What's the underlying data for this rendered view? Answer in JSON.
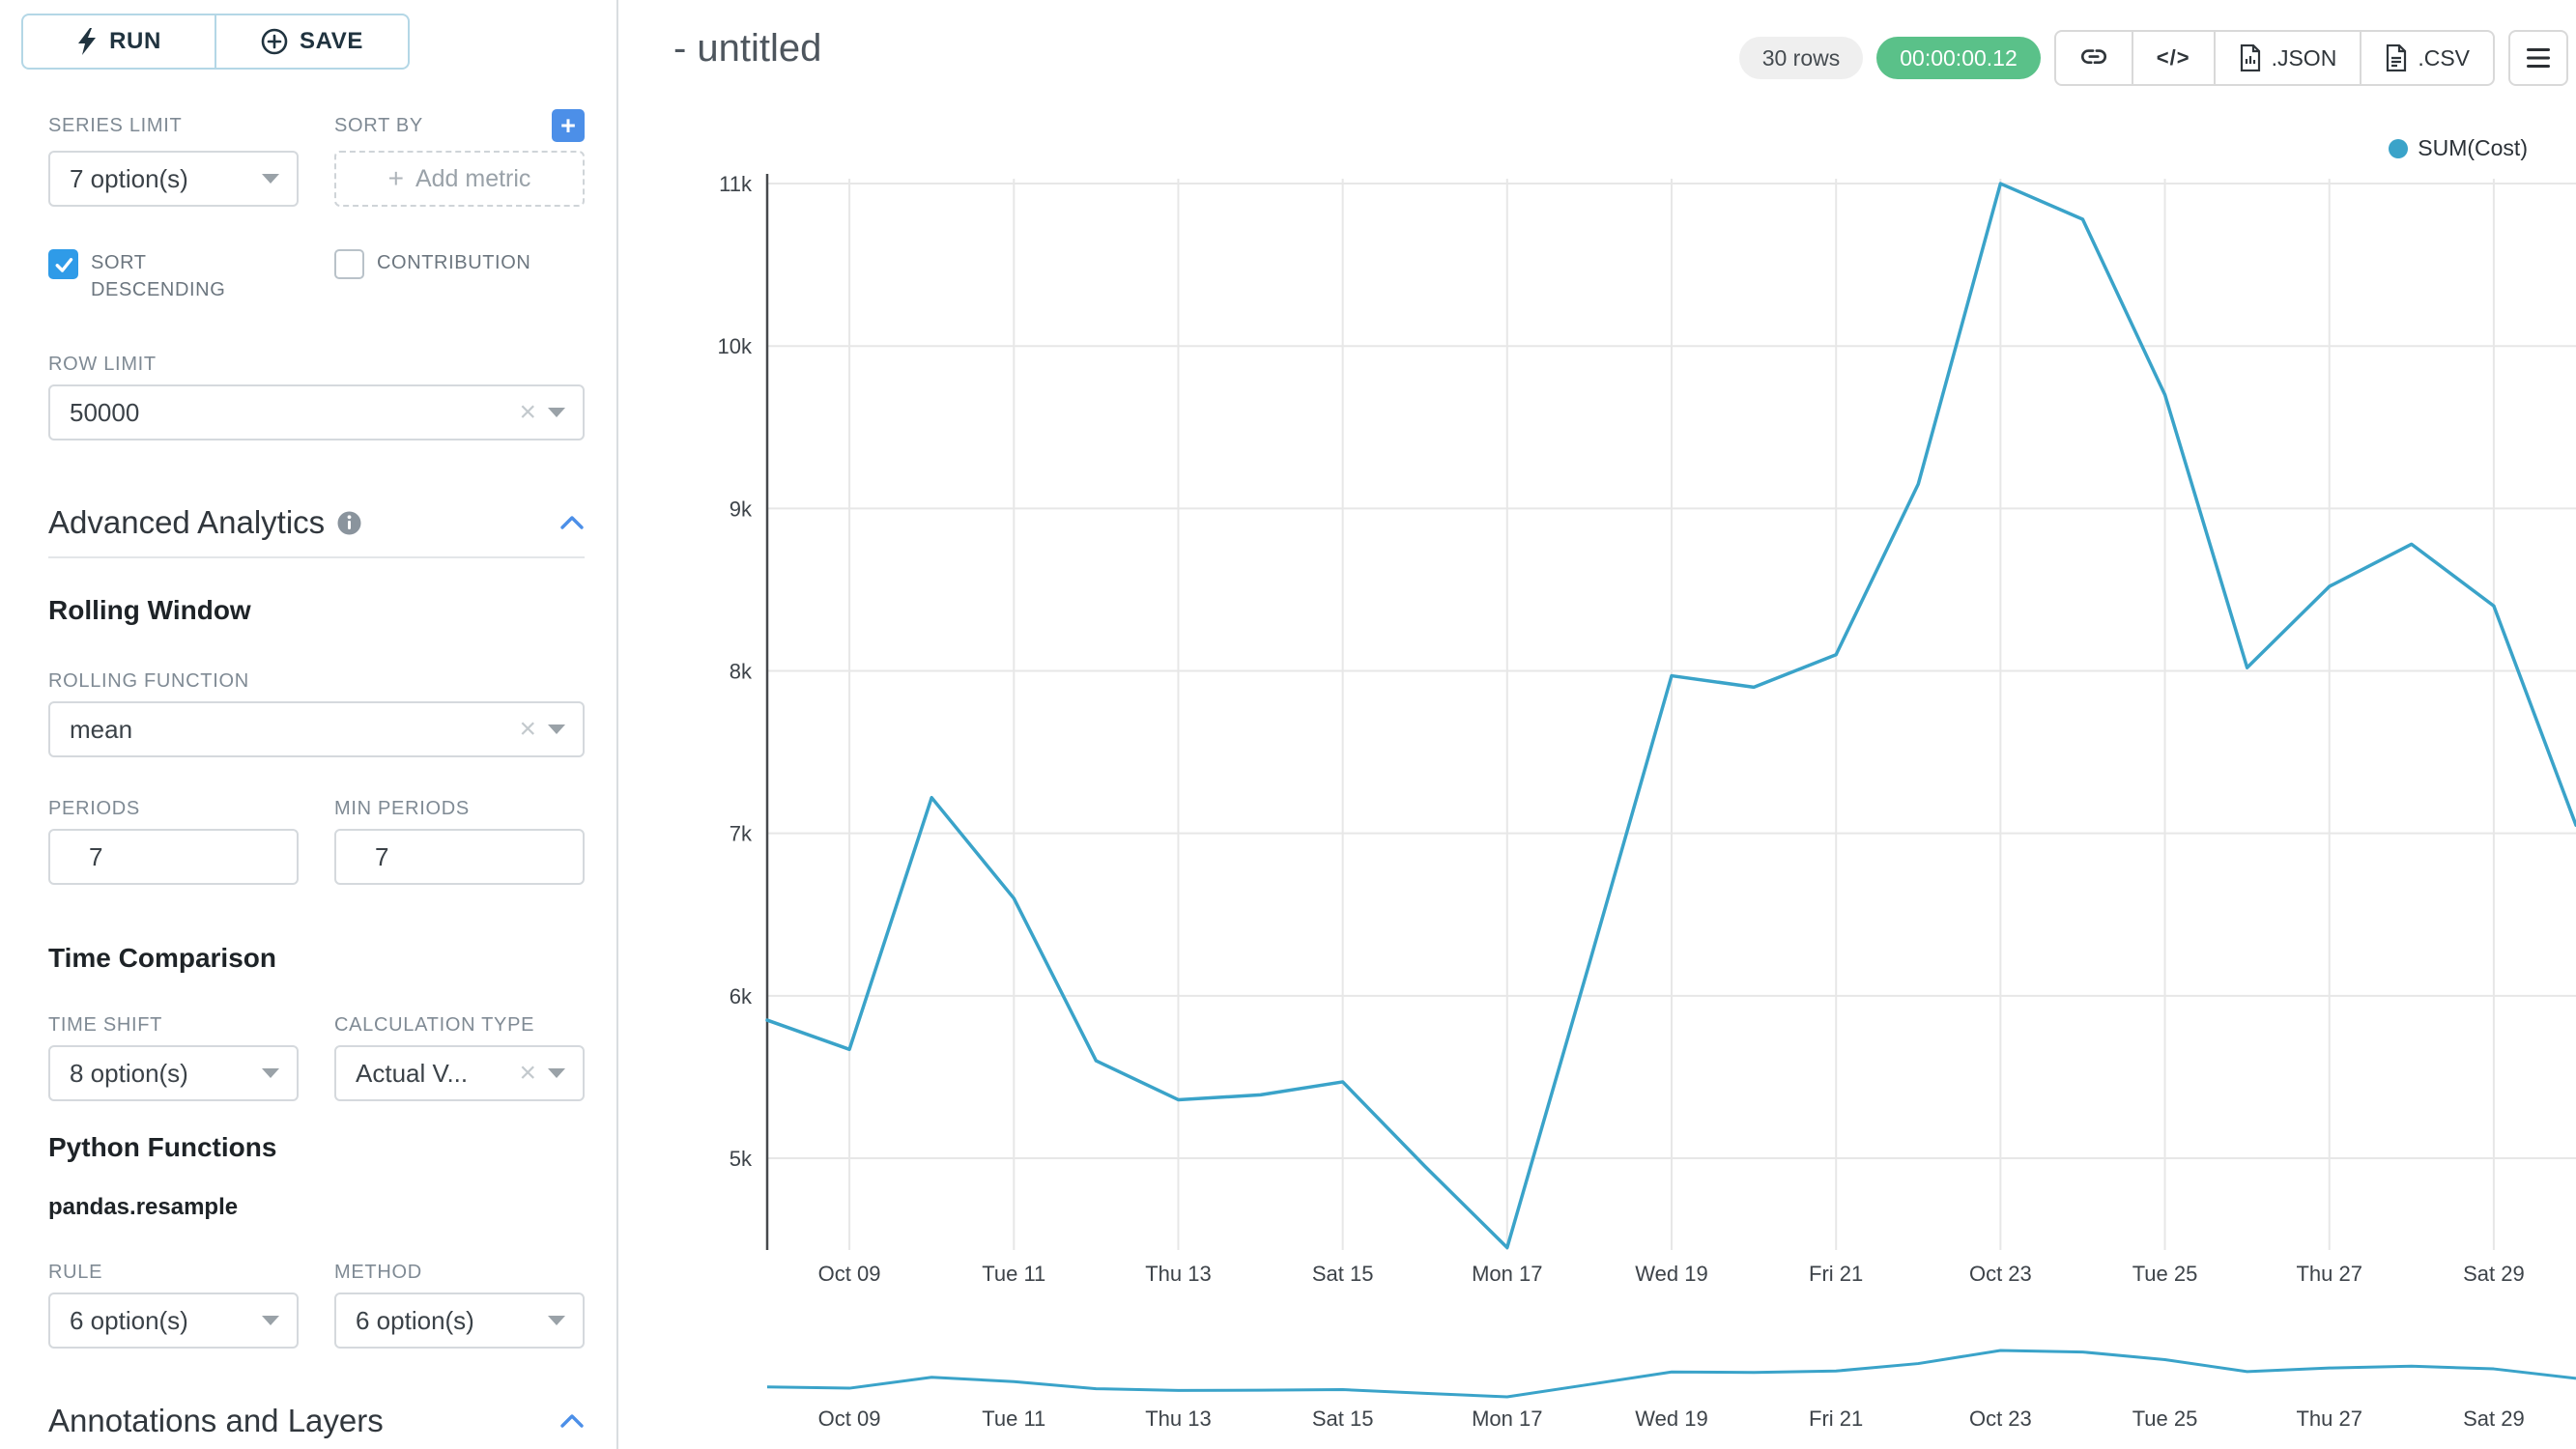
{
  "sidebar": {
    "run_label": "RUN",
    "save_label": "SAVE",
    "series_limit": {
      "label": "SERIES LIMIT",
      "value": "7 option(s)"
    },
    "sort_by": {
      "label": "SORT BY",
      "add_metric_label": "Add metric"
    },
    "sort_descending": {
      "label": "SORT DESCENDING",
      "checked": true
    },
    "contribution": {
      "label": "CONTRIBUTION",
      "checked": false
    },
    "row_limit": {
      "label": "ROW LIMIT",
      "value": "50000"
    },
    "advanced_analytics_title": "Advanced Analytics",
    "rolling_window": {
      "title": "Rolling Window",
      "rolling_function": {
        "label": "ROLLING FUNCTION",
        "value": "mean"
      },
      "periods": {
        "label": "PERIODS",
        "value": "7"
      },
      "min_periods": {
        "label": "MIN PERIODS",
        "value": "7"
      }
    },
    "time_comparison": {
      "title": "Time Comparison",
      "time_shift": {
        "label": "TIME SHIFT",
        "value": "8 option(s)"
      },
      "calculation_type": {
        "label": "CALCULATION TYPE",
        "value": "Actual V..."
      }
    },
    "python_functions": {
      "title": "Python Functions",
      "subtitle": "pandas.resample",
      "rule": {
        "label": "RULE",
        "value": "6 option(s)"
      },
      "method": {
        "label": "METHOD",
        "value": "6 option(s)"
      }
    },
    "annotations_title": "Annotations and Layers"
  },
  "header": {
    "title": "- untitled",
    "rows_badge": "30 rows",
    "timer_badge": "00:00:00.12",
    "embed_code_label": "</>",
    "json_label": ".JSON",
    "csv_label": ".CSV"
  },
  "icons": {
    "run": "lightning-bolt",
    "save": "plus-circle",
    "sort_by_add": "plus",
    "select_clear": "x",
    "select_open": "caret-down",
    "section_info": "info-circle",
    "section_collapse": "chevron-up",
    "copy_link": "link",
    "view_query": "code",
    "download": "file",
    "more": "hamburger-menu"
  },
  "colors": {
    "accent_blue": "#4c8fe8",
    "checkbox_blue": "#2f9be8",
    "timer_green": "#5ac189",
    "series_line": "#3aa3c9"
  },
  "chart_data": {
    "type": "line",
    "title": "",
    "legend_position": "top-right",
    "grid": true,
    "has_preview_strip": true,
    "series": [
      {
        "name": "SUM(Cost)",
        "color": "#3aa3c9",
        "values": [
          5850,
          5670,
          7220,
          6600,
          5600,
          5360,
          5390,
          5470,
          4950,
          4450,
          6200,
          7970,
          7900,
          8100,
          9150,
          11000,
          10780,
          9700,
          8020,
          8520,
          8780,
          8400,
          7050
        ]
      }
    ],
    "x_tick_labels": [
      "Oct 09",
      "Tue 11",
      "Thu 13",
      "Sat 15",
      "Mon 17",
      "Wed 19",
      "Fri 21",
      "Oct 23",
      "Tue 25",
      "Thu 27",
      "Sat 29"
    ],
    "x_tick_point_indices": [
      1,
      3,
      5,
      7,
      9,
      11,
      13,
      15,
      17,
      19,
      21
    ],
    "y_ticks": [
      5000,
      6000,
      7000,
      8000,
      9000,
      10000,
      11000
    ],
    "y_tick_labels": [
      "5k",
      "6k",
      "7k",
      "8k",
      "9k",
      "10k",
      "11k"
    ],
    "ylim": [
      4435,
      11030
    ]
  }
}
